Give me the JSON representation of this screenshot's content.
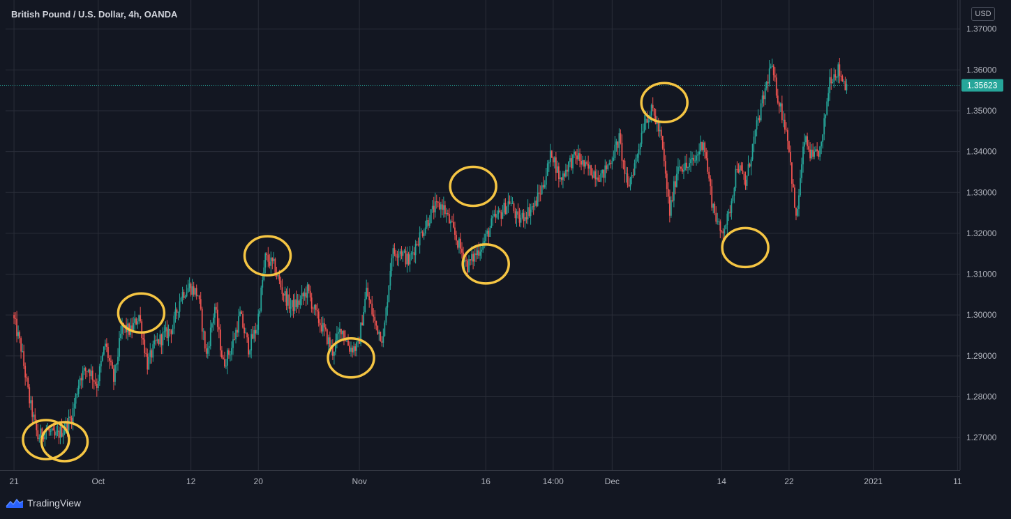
{
  "header": {
    "title": "British Pound / U.S. Dollar, 4h, OANDA",
    "currency": "USD"
  },
  "brand": {
    "name": "TradingView",
    "icon": "tradingview-logo-icon"
  },
  "colors": {
    "background": "#131722",
    "grid": "#2a2e39",
    "up": "#26a69a",
    "down": "#ef5350",
    "highlight": "#f5c543",
    "price_line": "#26a69a"
  },
  "chart_data": {
    "type": "candlestick",
    "title": "British Pound / U.S. Dollar, 4h, OANDA",
    "ylabel": "USD",
    "ylim": [
      1.262,
      1.372
    ],
    "y_ticks": [
      "1.27000",
      "1.28000",
      "1.29000",
      "1.30000",
      "1.31000",
      "1.32000",
      "1.33000",
      "1.34000",
      "1.35000",
      "1.36000",
      "1.37000"
    ],
    "y_tick_values": [
      1.27,
      1.28,
      1.29,
      1.3,
      1.31,
      1.32,
      1.33,
      1.34,
      1.35,
      1.36,
      1.37
    ],
    "x_ticks": [
      {
        "label": "21",
        "day": 0
      },
      {
        "label": "Oct",
        "day": 10
      },
      {
        "label": "12",
        "day": 21
      },
      {
        "label": "20",
        "day": 29
      },
      {
        "label": "Nov",
        "day": 41
      },
      {
        "label": "16",
        "day": 56
      },
      {
        "label": "14:00",
        "day": 64
      },
      {
        "label": "Dec",
        "day": 71
      },
      {
        "label": "14",
        "day": 84
      },
      {
        "label": "22",
        "day": 92
      },
      {
        "label": "2021",
        "day": 102
      },
      {
        "label": "11",
        "day": 112
      }
    ],
    "x_range_days": [
      -1,
      112.3
    ],
    "last_price": 1.35623,
    "last_price_label": "1.35623",
    "price_path_anchors": [
      [
        0,
        1.3
      ],
      [
        1,
        1.292
      ],
      [
        2,
        1.279
      ],
      [
        3,
        1.27
      ],
      [
        4,
        1.272
      ],
      [
        5,
        1.27
      ],
      [
        6,
        1.272
      ],
      [
        7,
        1.275
      ],
      [
        8,
        1.285
      ],
      [
        9,
        1.287
      ],
      [
        10,
        1.283
      ],
      [
        11,
        1.293
      ],
      [
        12,
        1.284
      ],
      [
        13,
        1.297
      ],
      [
        14,
        1.296
      ],
      [
        15,
        1.3
      ],
      [
        16,
        1.288
      ],
      [
        17,
        1.293
      ],
      [
        18,
        1.295
      ],
      [
        19,
        1.297
      ],
      [
        20,
        1.305
      ],
      [
        21,
        1.307
      ],
      [
        22,
        1.305
      ],
      [
        23,
        1.29
      ],
      [
        24,
        1.302
      ],
      [
        25,
        1.288
      ],
      [
        26,
        1.292
      ],
      [
        27,
        1.3
      ],
      [
        28,
        1.292
      ],
      [
        29,
        1.297
      ],
      [
        30,
        1.314
      ],
      [
        31,
        1.312
      ],
      [
        32,
        1.306
      ],
      [
        33,
        1.302
      ],
      [
        34,
        1.303
      ],
      [
        35,
        1.306
      ],
      [
        36,
        1.3
      ],
      [
        37,
        1.296
      ],
      [
        38,
        1.291
      ],
      [
        39,
        1.297
      ],
      [
        40,
        1.292
      ],
      [
        41,
        1.292
      ],
      [
        42,
        1.306
      ],
      [
        43,
        1.298
      ],
      [
        44,
        1.294
      ],
      [
        45,
        1.315
      ],
      [
        46,
        1.316
      ],
      [
        47,
        1.313
      ],
      [
        48,
        1.318
      ],
      [
        49,
        1.322
      ],
      [
        50,
        1.326
      ],
      [
        51,
        1.327
      ],
      [
        52,
        1.322
      ],
      [
        53,
        1.317
      ],
      [
        54,
        1.312
      ],
      [
        55,
        1.315
      ],
      [
        56,
        1.318
      ],
      [
        57,
        1.323
      ],
      [
        58,
        1.325
      ],
      [
        59,
        1.328
      ],
      [
        60,
        1.323
      ],
      [
        61,
        1.325
      ],
      [
        62,
        1.327
      ],
      [
        63,
        1.332
      ],
      [
        64,
        1.34
      ],
      [
        65,
        1.333
      ],
      [
        66,
        1.337
      ],
      [
        67,
        1.339
      ],
      [
        68,
        1.336
      ],
      [
        69,
        1.335
      ],
      [
        70,
        1.334
      ],
      [
        71,
        1.338
      ],
      [
        72,
        1.343
      ],
      [
        73,
        1.331
      ],
      [
        74,
        1.338
      ],
      [
        75,
        1.348
      ],
      [
        76,
        1.35
      ],
      [
        77,
        1.343
      ],
      [
        78,
        1.325
      ],
      [
        79,
        1.337
      ],
      [
        80,
        1.336
      ],
      [
        81,
        1.338
      ],
      [
        82,
        1.343
      ],
      [
        83,
        1.328
      ],
      [
        84,
        1.32
      ],
      [
        85,
        1.324
      ],
      [
        86,
        1.337
      ],
      [
        87,
        1.332
      ],
      [
        88,
        1.343
      ],
      [
        89,
        1.352
      ],
      [
        90,
        1.361
      ],
      [
        91,
        1.352
      ],
      [
        92,
        1.344
      ],
      [
        93,
        1.323
      ],
      [
        94,
        1.343
      ],
      [
        95,
        1.338
      ],
      [
        96,
        1.341
      ],
      [
        97,
        1.358
      ],
      [
        98,
        1.36
      ],
      [
        98.9,
        1.35623
      ]
    ],
    "highlighted_points": [
      {
        "day": 3.8,
        "price": 1.2695
      },
      {
        "day": 15.1,
        "price": 1.3005
      },
      {
        "day": 30.1,
        "price": 1.3145
      },
      {
        "day": 40.0,
        "price": 1.2895
      },
      {
        "day": 54.5,
        "price": 1.3315
      },
      {
        "day": 56.0,
        "price": 1.3125
      },
      {
        "day": 77.2,
        "price": 1.352
      },
      {
        "day": 86.8,
        "price": 1.3165
      },
      {
        "day": 6.0,
        "price": 1.269
      }
    ]
  }
}
